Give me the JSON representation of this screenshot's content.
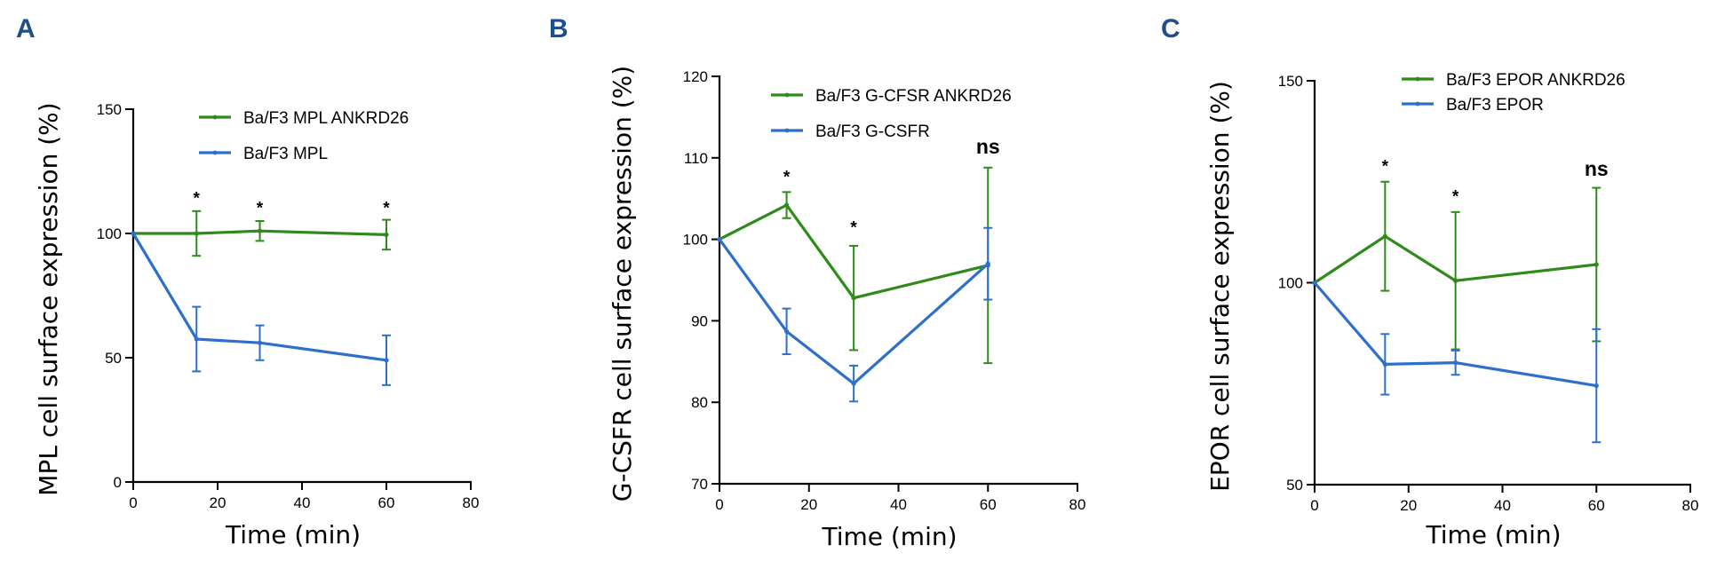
{
  "colors": {
    "green": "#2e8b1a",
    "blue": "#2f6fcc",
    "panel_label": "#1f4e8c"
  },
  "chart_data": [
    {
      "panel": "A",
      "type": "line",
      "xlabel": "Time (min)",
      "ylabel": "MPL cell surface expression (%)",
      "xlim": [
        0,
        80
      ],
      "ylim": [
        0,
        150
      ],
      "xticks": [
        0,
        20,
        40,
        60,
        80
      ],
      "yticks": [
        0,
        50,
        100,
        150
      ],
      "series": [
        {
          "name": "Ba/F3 MPL ANKRD26",
          "color": "green",
          "x": [
            0,
            15,
            30,
            60
          ],
          "y": [
            100,
            100,
            101,
            99.5
          ],
          "err": [
            0,
            9,
            4,
            6
          ]
        },
        {
          "name": "Ba/F3 MPL",
          "color": "blue",
          "x": [
            0,
            15,
            30,
            60
          ],
          "y": [
            100,
            57.5,
            56,
            49
          ],
          "err": [
            0,
            13,
            7,
            10
          ]
        }
      ],
      "annotations": [
        {
          "text": "*",
          "x": 15,
          "y": 112
        },
        {
          "text": "*",
          "x": 30,
          "y": 108
        },
        {
          "text": "*",
          "x": 60,
          "y": 108
        }
      ]
    },
    {
      "panel": "B",
      "type": "line",
      "xlabel": "Time (min)",
      "ylabel": "G-CSFR cell surface expression (%)",
      "xlim": [
        0,
        80
      ],
      "ylim": [
        70,
        120
      ],
      "xticks": [
        0,
        20,
        40,
        60,
        80
      ],
      "yticks": [
        70,
        80,
        90,
        100,
        110,
        120
      ],
      "series": [
        {
          "name": "Ba/F3 G-CFSR ANKRD26",
          "color": "green",
          "x": [
            0,
            15,
            30,
            60
          ],
          "y": [
            100,
            104.2,
            92.8,
            96.8
          ],
          "err": [
            0,
            1.6,
            6.4,
            12
          ]
        },
        {
          "name": "Ba/F3 G-CSFR",
          "color": "blue",
          "x": [
            0,
            15,
            30,
            60
          ],
          "y": [
            100,
            88.7,
            82.3,
            97
          ],
          "err": [
            0,
            2.8,
            2.2,
            4.4
          ]
        }
      ],
      "annotations": [
        {
          "text": "*",
          "x": 15,
          "y": 107
        },
        {
          "text": "*",
          "x": 30,
          "y": 100.8
        },
        {
          "text": "ns",
          "x": 60,
          "y": 110.5
        }
      ]
    },
    {
      "panel": "C",
      "type": "line",
      "xlabel": "Time (min)",
      "ylabel": "EPOR cell surface expression (%)",
      "xlim": [
        0,
        80
      ],
      "ylim": [
        50,
        150
      ],
      "xticks": [
        0,
        20,
        40,
        60,
        80
      ],
      "yticks": [
        50,
        100,
        150
      ],
      "series": [
        {
          "name": "Ba/F3 EPOR ANKRD26",
          "color": "green",
          "x": [
            0,
            15,
            30,
            60
          ],
          "y": [
            100,
            111.5,
            100.5,
            104.5
          ],
          "err": [
            0,
            13.5,
            17,
            19
          ]
        },
        {
          "name": "Ba/F3 EPOR",
          "color": "blue",
          "x": [
            0,
            15,
            30,
            60
          ],
          "y": [
            100,
            79.8,
            80.2,
            74.5
          ],
          "err": [
            0,
            7.5,
            3,
            14
          ]
        }
      ],
      "annotations": [
        {
          "text": "*",
          "x": 15,
          "y": 127.5
        },
        {
          "text": "*",
          "x": 30,
          "y": 120
        },
        {
          "text": "ns",
          "x": 60,
          "y": 126.5
        }
      ]
    }
  ]
}
